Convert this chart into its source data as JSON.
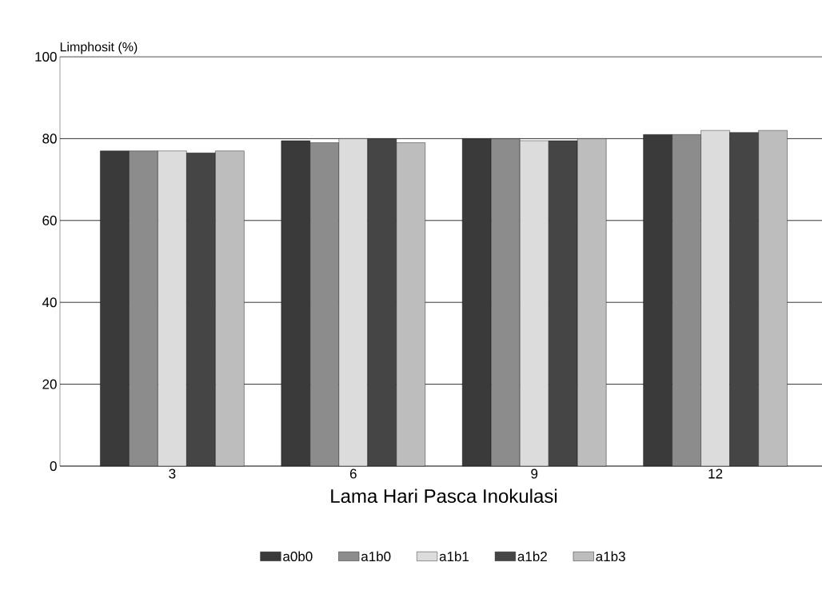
{
  "chart_data": {
    "type": "bar",
    "categories": [
      "3",
      "6",
      "9",
      "12"
    ],
    "xlabel": "Lama Hari Pasca Inokulasi",
    "ylabel": "Limphosit (%)",
    "ylim": [
      0,
      100
    ],
    "yticks": [
      0,
      20,
      40,
      60,
      80,
      100
    ],
    "grid": "y",
    "legend": "bottom",
    "series": [
      {
        "name": "a0b0",
        "color": "#3a3a3a",
        "values": [
          77,
          79.5,
          80,
          81
        ]
      },
      {
        "name": "a1b0",
        "color": "#8c8c8c",
        "values": [
          77,
          79,
          80,
          81
        ]
      },
      {
        "name": "a1b1",
        "color": "#dcdcdc",
        "values": [
          77,
          80,
          79.5,
          82
        ]
      },
      {
        "name": "a1b2",
        "color": "#454545",
        "values": [
          76.5,
          80,
          79.5,
          81.5
        ]
      },
      {
        "name": "a1b3",
        "color": "#bdbdbd",
        "values": [
          77,
          79,
          80,
          82
        ]
      }
    ]
  }
}
